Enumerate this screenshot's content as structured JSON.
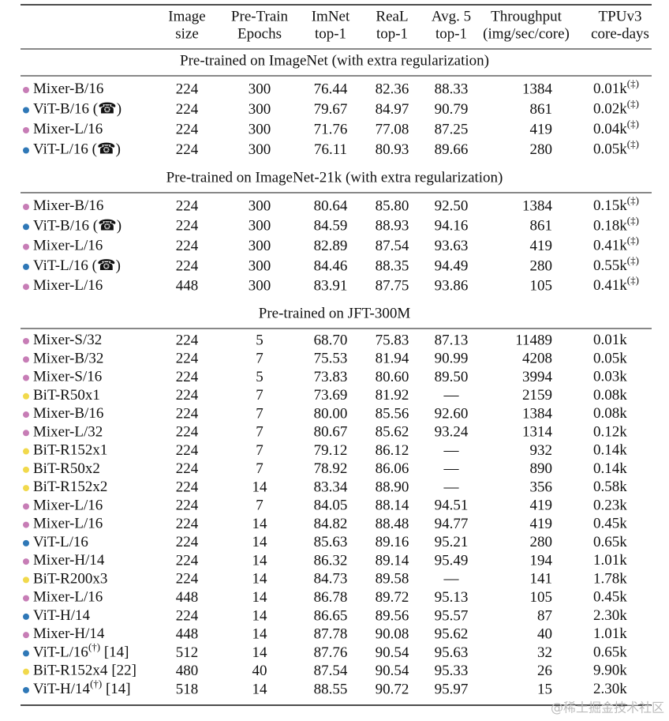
{
  "table": {
    "headers": [
      [
        "Image",
        "size"
      ],
      [
        "Pre-Train",
        "Epochs"
      ],
      [
        "ImNet",
        "top-1"
      ],
      [
        "ReaL",
        "top-1"
      ],
      [
        "Avg. 5",
        "top-1"
      ],
      [
        "Throughput",
        "(img/sec/core)"
      ],
      [
        "TPUv3",
        "core-days"
      ]
    ],
    "sections": [
      {
        "title": "Pre-trained on ImageNet (with extra regularization)",
        "rows": [
          {
            "dot": "#c77db6",
            "name": "Mixer-B/16",
            "cells": [
              "224",
              "300",
              "76.44",
              "82.36",
              "88.33",
              "1384",
              "0.01k"
            ],
            "tpu_sup": "(‡)"
          },
          {
            "dot": "#2f78b7",
            "name": "ViT-B/16 (☎)",
            "cells": [
              "224",
              "300",
              "79.67",
              "84.97",
              "90.79",
              "861",
              "0.02k"
            ],
            "tpu_sup": "(‡)"
          },
          {
            "dot": "#c77db6",
            "name": "Mixer-L/16",
            "cells": [
              "224",
              "300",
              "71.76",
              "77.08",
              "87.25",
              "419",
              "0.04k"
            ],
            "tpu_sup": "(‡)"
          },
          {
            "dot": "#2f78b7",
            "name": "ViT-L/16 (☎)",
            "cells": [
              "224",
              "300",
              "76.11",
              "80.93",
              "89.66",
              "280",
              "0.05k"
            ],
            "tpu_sup": "(‡)"
          }
        ]
      },
      {
        "title": "Pre-trained on ImageNet-21k (with extra regularization)",
        "rows": [
          {
            "dot": "#c77db6",
            "name": "Mixer-B/16",
            "cells": [
              "224",
              "300",
              "80.64",
              "85.80",
              "92.50",
              "1384",
              "0.15k"
            ],
            "tpu_sup": "(‡)"
          },
          {
            "dot": "#2f78b7",
            "name": "ViT-B/16 (☎)",
            "cells": [
              "224",
              "300",
              "84.59",
              "88.93",
              "94.16",
              "861",
              "0.18k"
            ],
            "tpu_sup": "(‡)"
          },
          {
            "dot": "#c77db6",
            "name": "Mixer-L/16",
            "cells": [
              "224",
              "300",
              "82.89",
              "87.54",
              "93.63",
              "419",
              "0.41k"
            ],
            "tpu_sup": "(‡)"
          },
          {
            "dot": "#2f78b7",
            "name": "ViT-L/16 (☎)",
            "cells": [
              "224",
              "300",
              "84.46",
              "88.35",
              "94.49",
              "280",
              "0.55k"
            ],
            "tpu_sup": "(‡)"
          },
          {
            "dot": "#c77db6",
            "name": "Mixer-L/16",
            "cells": [
              "448",
              "300",
              "83.91",
              "87.75",
              "93.86",
              "105",
              "0.41k"
            ],
            "tpu_sup": "(‡)"
          }
        ]
      },
      {
        "title": "Pre-trained on JFT-300M",
        "rows": [
          {
            "dot": "#c77db6",
            "name": "Mixer-S/32",
            "cells": [
              "224",
              "5",
              "68.70",
              "75.83",
              "87.13",
              "11489",
              "0.01k"
            ]
          },
          {
            "dot": "#c77db6",
            "name": "Mixer-B/32",
            "cells": [
              "224",
              "7",
              "75.53",
              "81.94",
              "90.99",
              "4208",
              "0.05k"
            ]
          },
          {
            "dot": "#c77db6",
            "name": "Mixer-S/16",
            "cells": [
              "224",
              "5",
              "73.83",
              "80.60",
              "89.50",
              "3994",
              "0.03k"
            ]
          },
          {
            "dot": "#f1d94c",
            "name": "BiT-R50x1",
            "cells": [
              "224",
              "7",
              "73.69",
              "81.92",
              "—",
              "2159",
              "0.08k"
            ]
          },
          {
            "dot": "#c77db6",
            "name": "Mixer-B/16",
            "cells": [
              "224",
              "7",
              "80.00",
              "85.56",
              "92.60",
              "1384",
              "0.08k"
            ]
          },
          {
            "dot": "#c77db6",
            "name": "Mixer-L/32",
            "cells": [
              "224",
              "7",
              "80.67",
              "85.62",
              "93.24",
              "1314",
              "0.12k"
            ]
          },
          {
            "dot": "#f1d94c",
            "name": "BiT-R152x1",
            "cells": [
              "224",
              "7",
              "79.12",
              "86.12",
              "—",
              "932",
              "0.14k"
            ]
          },
          {
            "dot": "#f1d94c",
            "name": "BiT-R50x2",
            "cells": [
              "224",
              "7",
              "78.92",
              "86.06",
              "—",
              "890",
              "0.14k"
            ]
          },
          {
            "dot": "#f1d94c",
            "name": "BiT-R152x2",
            "cells": [
              "224",
              "14",
              "83.34",
              "88.90",
              "—",
              "356",
              "0.58k"
            ]
          },
          {
            "dot": "#c77db6",
            "name": "Mixer-L/16",
            "cells": [
              "224",
              "7",
              "84.05",
              "88.14",
              "94.51",
              "419",
              "0.23k"
            ]
          },
          {
            "dot": "#c77db6",
            "name": "Mixer-L/16",
            "cells": [
              "224",
              "14",
              "84.82",
              "88.48",
              "94.77",
              "419",
              "0.45k"
            ]
          },
          {
            "dot": "#2f78b7",
            "name": "ViT-L/16",
            "cells": [
              "224",
              "14",
              "85.63",
              "89.16",
              "95.21",
              "280",
              "0.65k"
            ]
          },
          {
            "dot": "#c77db6",
            "name": "Mixer-H/14",
            "cells": [
              "224",
              "14",
              "86.32",
              "89.14",
              "95.49",
              "194",
              "1.01k"
            ]
          },
          {
            "dot": "#f1d94c",
            "name": "BiT-R200x3",
            "cells": [
              "224",
              "14",
              "84.73",
              "89.58",
              "—",
              "141",
              "1.78k"
            ]
          },
          {
            "dot": "#c77db6",
            "name": "Mixer-L/16",
            "cells": [
              "448",
              "14",
              "86.78",
              "89.72",
              "95.13",
              "105",
              "0.45k"
            ]
          },
          {
            "dot": "#2f78b7",
            "name": "ViT-H/14",
            "cells": [
              "224",
              "14",
              "86.65",
              "89.56",
              "95.57",
              "87",
              "2.30k"
            ]
          },
          {
            "dot": "#c77db6",
            "name": "Mixer-H/14",
            "cells": [
              "448",
              "14",
              "87.78",
              "90.08",
              "95.62",
              "40",
              "1.01k"
            ]
          },
          {
            "dot": "#2f78b7",
            "name": "ViT-L/16",
            "name_sup": "(†)",
            "ref": "[14]",
            "cells": [
              "512",
              "14",
              "87.76",
              "90.54",
              "95.63",
              "32",
              "0.65k"
            ]
          },
          {
            "dot": "#f1d94c",
            "name": "BiT-R152x4",
            "ref": "[22]",
            "cells": [
              "480",
              "40",
              "87.54",
              "90.54",
              "95.33",
              "26",
              "9.90k"
            ]
          },
          {
            "dot": "#2f78b7",
            "name": "ViT-H/14",
            "name_sup": "(†)",
            "ref": "[14]",
            "cells": [
              "518",
              "14",
              "88.55",
              "90.72",
              "95.97",
              "15",
              "2.30k"
            ]
          }
        ]
      }
    ]
  },
  "watermark": "@稀土掘金技术社区"
}
